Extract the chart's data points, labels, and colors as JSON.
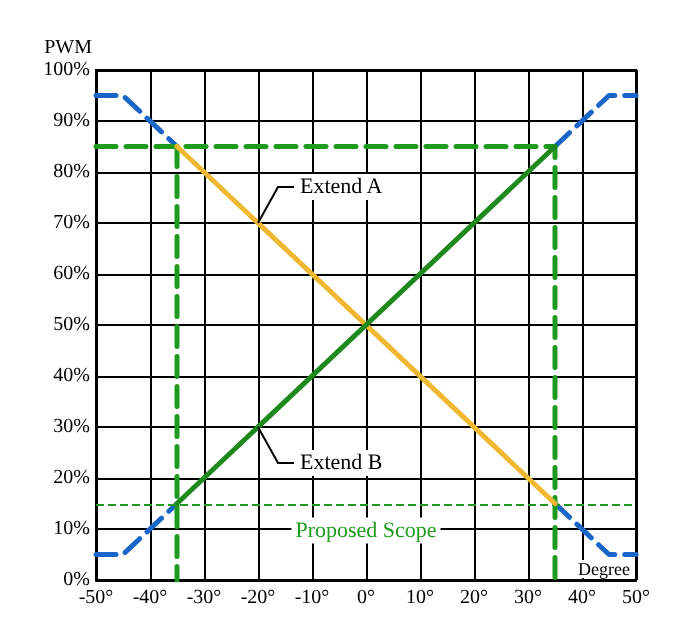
{
  "chart_data": {
    "type": "line",
    "xlabel": "Degree",
    "ylabel": "PWM",
    "xlim": [
      -50,
      50
    ],
    "xticks": [
      {
        "value": -50,
        "label": "-50°"
      },
      {
        "value": -40,
        "label": "-40°"
      },
      {
        "value": -30,
        "label": "-30°"
      },
      {
        "value": -20,
        "label": "-20°"
      },
      {
        "value": -10,
        "label": "-10°"
      },
      {
        "value": 0,
        "label": "0°"
      },
      {
        "value": 10,
        "label": "10°"
      },
      {
        "value": 20,
        "label": "20°"
      },
      {
        "value": 30,
        "label": "30°"
      },
      {
        "value": 40,
        "label": "40°"
      },
      {
        "value": 50,
        "label": "50°"
      }
    ],
    "ylim": [
      0,
      100
    ],
    "yticks": [
      {
        "value": 0,
        "label": "0%"
      },
      {
        "value": 10,
        "label": "10%"
      },
      {
        "value": 20,
        "label": "20%"
      },
      {
        "value": 30,
        "label": "30%"
      },
      {
        "value": 40,
        "label": "40%"
      },
      {
        "value": 50,
        "label": "50%"
      },
      {
        "value": 60,
        "label": "60%"
      },
      {
        "value": 70,
        "label": "70%"
      },
      {
        "value": 80,
        "label": "80%"
      },
      {
        "value": 90,
        "label": "90%"
      },
      {
        "value": 100,
        "label": "100%"
      }
    ],
    "grid": true,
    "marker": "none",
    "line_style": "solid",
    "series": [
      {
        "color": "#1a66c8",
        "line_style": "dashed",
        "x": [
          -50,
          -45,
          -35,
          0,
          35,
          45,
          50
        ],
        "values": [
          95,
          95,
          85,
          null,
          85,
          95,
          95
        ]
      },
      {
        "color": "#1a66c8",
        "line_style": "dashed",
        "x": [
          -50,
          -45,
          -35,
          0,
          35,
          45,
          50
        ],
        "values": [
          5,
          5,
          15,
          null,
          15,
          5,
          5
        ]
      },
      {
        "color": "#1e9a1e",
        "line_style": "dashed",
        "x": [
          -50,
          35,
          35
        ],
        "values": [
          85,
          85,
          0
        ]
      },
      {
        "color": "#1e9a1e",
        "line_style": "dashed",
        "x": [
          -35,
          -35
        ],
        "values": [
          85,
          0
        ]
      },
      {
        "color": "#f0b830",
        "x": [
          -35,
          35
        ],
        "values": [
          85,
          15
        ]
      },
      {
        "color": "#1e8a1e",
        "x": [
          -35,
          35
        ],
        "values": [
          15,
          85
        ]
      }
    ],
    "ref_lines": [
      {
        "axis": "y",
        "value": 15,
        "label": "Proposed Scope",
        "color": "#1e9a1e",
        "line_style": "dashed"
      }
    ],
    "annotations": [
      {
        "text": "Extend A",
        "x": -20,
        "y": 70
      },
      {
        "text": "Extend B",
        "x": -20,
        "y": 30
      }
    ]
  }
}
